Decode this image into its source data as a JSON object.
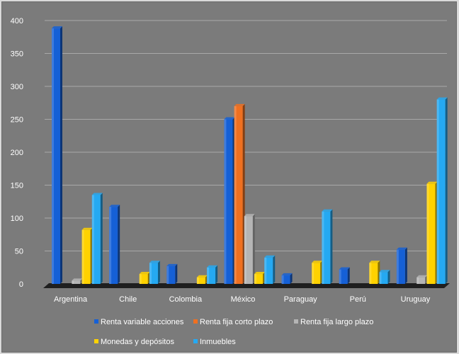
{
  "chart_data": {
    "type": "bar",
    "categories": [
      "Argentina",
      "Chile",
      "Colombia",
      "México",
      "Paraguay",
      "Perú",
      "Uruguay"
    ],
    "series": [
      {
        "name": "Renta variable acciones",
        "color": "#1560d6",
        "values": [
          388,
          117,
          27,
          250,
          13,
          22,
          52
        ]
      },
      {
        "name": "Renta fija corto plazo",
        "color": "#f07020",
        "values": [
          0,
          0,
          0,
          270,
          0,
          0,
          0
        ]
      },
      {
        "name": "Renta fija largo plazo",
        "color": "#b5b5b5",
        "values": [
          5,
          0,
          0,
          103,
          0,
          0,
          10
        ]
      },
      {
        "name": "Monedas y depósitos",
        "color": "#ffd200",
        "values": [
          82,
          15,
          10,
          15,
          32,
          32,
          152
        ]
      },
      {
        "name": "Inmuebles",
        "color": "#25a9f2",
        "values": [
          135,
          32,
          25,
          40,
          110,
          18,
          280
        ]
      }
    ],
    "ylim": [
      0,
      400
    ],
    "yticks": [
      0,
      50,
      100,
      150,
      200,
      250,
      300,
      350,
      400
    ],
    "grid": true,
    "legend": "bottom"
  }
}
